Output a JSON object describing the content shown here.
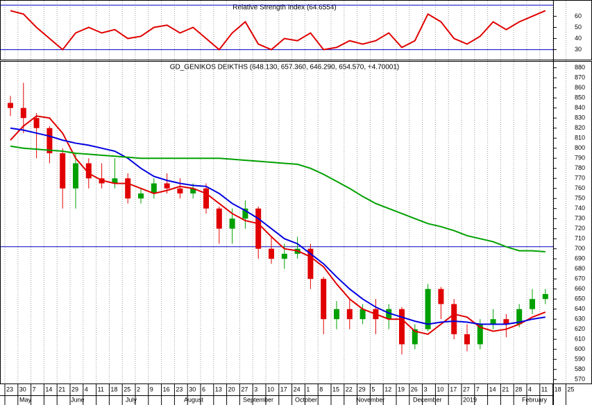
{
  "chart_data": [
    {
      "type": "line",
      "title": "Relative Strength Index (64.6554)",
      "series": [
        {
          "name": "RSI",
          "color": "#e00000",
          "values": [
            65,
            62,
            50,
            40,
            30,
            45,
            50,
            45,
            48,
            40,
            42,
            50,
            52,
            45,
            50,
            40,
            30,
            45,
            55,
            35,
            30,
            40,
            38,
            45,
            30,
            32,
            38,
            35,
            38,
            45,
            32,
            38,
            62,
            55,
            40,
            35,
            42,
            55,
            48,
            55,
            60,
            65,
            null,
            null
          ]
        }
      ],
      "ylim": [
        21,
        74
      ],
      "yticks": [
        30,
        40,
        50,
        60
      ],
      "hlines": [
        70,
        30
      ],
      "hline_color": "#0000c0"
    },
    {
      "type": "candlestick",
      "title": "GD_GENIKOS DEIKTHS (648.130, 657.360, 646.290, 654.570, +4.70001)",
      "categories": [
        "23",
        "30",
        "7",
        "14",
        "21",
        "29",
        "4",
        "11",
        "18",
        "25",
        "2",
        "9",
        "16",
        "23",
        "30",
        "6",
        "13",
        "20",
        "27",
        "3",
        "10",
        "17",
        "24",
        "1",
        "8",
        "15",
        "22",
        "29",
        "5",
        "12",
        "19",
        "26",
        "3",
        "10",
        "17",
        "27",
        "7",
        "14",
        "21",
        "28",
        "4",
        "11",
        "18",
        "25"
      ],
      "months": [
        "May",
        "June",
        "July",
        "August",
        "September",
        "October",
        "November",
        "December",
        "2019",
        "February"
      ],
      "open": [
        845,
        840,
        830,
        820,
        795,
        760,
        785,
        770,
        765,
        770,
        750,
        755,
        765,
        760,
        755,
        760,
        740,
        720,
        730,
        740,
        700,
        690,
        695,
        700,
        670,
        630,
        640,
        630,
        640,
        630,
        640,
        605,
        620,
        660,
        645,
        615,
        605,
        625,
        630,
        625,
        640,
        650,
        null,
        null
      ],
      "high": [
        852,
        865,
        835,
        822,
        800,
        795,
        790,
        785,
        790,
        775,
        760,
        770,
        775,
        770,
        765,
        765,
        742,
        740,
        748,
        742,
        712,
        705,
        712,
        705,
        672,
        648,
        650,
        645,
        650,
        645,
        642,
        625,
        665,
        662,
        650,
        625,
        630,
        640,
        635,
        645,
        660,
        660,
        null,
        null
      ],
      "low": [
        832,
        815,
        790,
        785,
        740,
        740,
        760,
        760,
        760,
        745,
        745,
        750,
        755,
        750,
        750,
        735,
        705,
        705,
        720,
        690,
        685,
        680,
        690,
        660,
        615,
        620,
        620,
        625,
        615,
        620,
        595,
        600,
        618,
        630,
        610,
        598,
        600,
        620,
        612,
        622,
        635,
        645,
        null,
        null
      ],
      "close": [
        840,
        830,
        820,
        795,
        760,
        785,
        770,
        765,
        770,
        750,
        755,
        765,
        760,
        755,
        760,
        740,
        720,
        730,
        740,
        700,
        690,
        695,
        700,
        670,
        630,
        640,
        630,
        640,
        630,
        640,
        605,
        620,
        660,
        645,
        615,
        605,
        625,
        630,
        625,
        640,
        650,
        655,
        null,
        null
      ],
      "up_color": "#00a000",
      "down_color": "#e00000",
      "series": [
        {
          "name": "MA short",
          "color": "#e00000",
          "values": [
            808,
            822,
            832,
            830,
            815,
            790,
            775,
            768,
            765,
            765,
            760,
            755,
            758,
            762,
            760,
            755,
            745,
            735,
            728,
            725,
            712,
            700,
            698,
            692,
            682,
            665,
            650,
            640,
            635,
            630,
            630,
            618,
            615,
            625,
            635,
            632,
            622,
            618,
            620,
            625,
            632,
            637,
            null,
            null
          ]
        },
        {
          "name": "MA medium",
          "color": "#0000e0",
          "values": [
            820,
            818,
            815,
            812,
            808,
            805,
            803,
            800,
            797,
            790,
            780,
            772,
            768,
            765,
            763,
            762,
            755,
            745,
            738,
            730,
            720,
            710,
            705,
            695,
            685,
            672,
            660,
            650,
            642,
            636,
            632,
            628,
            625,
            627,
            628,
            627,
            625,
            625,
            625,
            627,
            630,
            632,
            null,
            null
          ]
        },
        {
          "name": "MA long",
          "color": "#00a000",
          "values": [
            802,
            800,
            799,
            798,
            797,
            795,
            794,
            793,
            792,
            791,
            790,
            790,
            790,
            790,
            790,
            790,
            790,
            789,
            788,
            787,
            786,
            785,
            784,
            780,
            774,
            767,
            760,
            752,
            745,
            740,
            735,
            730,
            725,
            722,
            718,
            713,
            710,
            707,
            702,
            698,
            698,
            697,
            null,
            null
          ]
        }
      ],
      "ylim": [
        566,
        886
      ],
      "yticks": [
        570,
        580,
        590,
        600,
        610,
        620,
        630,
        640,
        650,
        660,
        670,
        680,
        690,
        700,
        710,
        720,
        730,
        740,
        750,
        760,
        770,
        780,
        790,
        800,
        810,
        820,
        830,
        840,
        850,
        860,
        870,
        880
      ],
      "hlines": [
        702
      ],
      "hline_color": "#0000c0"
    }
  ]
}
